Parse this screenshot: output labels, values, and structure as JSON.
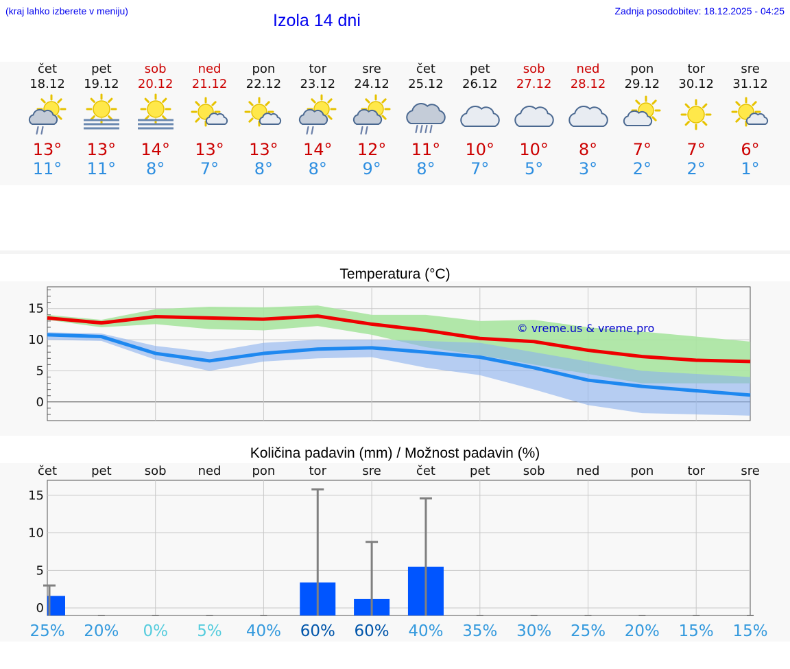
{
  "header": {
    "left_note": "(kraj lahko izberete v meniju)",
    "title": "Izola 14 dni",
    "updated": "Zadnja posodobitev: 18.12.2025 - 04:25"
  },
  "days": [
    {
      "name": "čet",
      "date": "18.12",
      "weekend": false,
      "icon": "sun-cloud-rain-icon",
      "tmax": "13°",
      "tmin": "11°"
    },
    {
      "name": "pet",
      "date": "19.12",
      "weekend": false,
      "icon": "sun-fog-icon",
      "tmax": "13°",
      "tmin": "11°"
    },
    {
      "name": "sob",
      "date": "20.12",
      "weekend": true,
      "icon": "sun-fog-icon",
      "tmax": "14°",
      "tmin": "8°"
    },
    {
      "name": "ned",
      "date": "21.12",
      "weekend": true,
      "icon": "sun-small-cloud-icon",
      "tmax": "13°",
      "tmin": "7°"
    },
    {
      "name": "pon",
      "date": "22.12",
      "weekend": false,
      "icon": "sun-small-cloud-icon",
      "tmax": "13°",
      "tmin": "8°"
    },
    {
      "name": "tor",
      "date": "23.12",
      "weekend": false,
      "icon": "sun-cloud-rain-icon",
      "tmax": "14°",
      "tmin": "8°"
    },
    {
      "name": "sre",
      "date": "24.12",
      "weekend": false,
      "icon": "sun-cloud-rain-icon",
      "tmax": "12°",
      "tmin": "9°"
    },
    {
      "name": "čet",
      "date": "25.12",
      "weekend": false,
      "icon": "cloud-heavy-rain-icon",
      "tmax": "11°",
      "tmin": "8°"
    },
    {
      "name": "pet",
      "date": "26.12",
      "weekend": false,
      "icon": "cloud-icon",
      "tmax": "10°",
      "tmin": "7°"
    },
    {
      "name": "sob",
      "date": "27.12",
      "weekend": true,
      "icon": "cloud-icon",
      "tmax": "10°",
      "tmin": "5°"
    },
    {
      "name": "ned",
      "date": "28.12",
      "weekend": true,
      "icon": "cloud-icon",
      "tmax": "8°",
      "tmin": "3°"
    },
    {
      "name": "pon",
      "date": "29.12",
      "weekend": false,
      "icon": "sun-cloud-icon",
      "tmax": "7°",
      "tmin": "2°"
    },
    {
      "name": "tor",
      "date": "30.12",
      "weekend": false,
      "icon": "sun-icon",
      "tmax": "7°",
      "tmin": "2°"
    },
    {
      "name": "sre",
      "date": "31.12",
      "weekend": false,
      "icon": "sun-small-cloud-icon",
      "tmax": "6°",
      "tmin": "1°"
    }
  ],
  "colors": {
    "max_line": "#ee0000",
    "min_line": "#1e88f0",
    "max_band": "#a8e4a0",
    "min_band": "#8ab0ee",
    "overlap_band": "#7fc4a8",
    "rain_bar": "#0055ff",
    "whisker": "#808080",
    "weekend": "#cc0000"
  },
  "chart_data": [
    {
      "type": "line",
      "title": "Temperatura (°C)",
      "watermark": "© vreme.us & vreme.pro",
      "ylim": [
        -3,
        18.5
      ],
      "yticks": [
        0,
        5,
        10,
        15
      ],
      "x": [
        0,
        1,
        2,
        3,
        4,
        5,
        6,
        7,
        8,
        9,
        10,
        11,
        12,
        13
      ],
      "series": [
        {
          "name": "max",
          "values": [
            13.5,
            12.7,
            13.7,
            13.5,
            13.3,
            13.8,
            12.5,
            11.5,
            10.2,
            9.7,
            8.3,
            7.3,
            6.7,
            6.5
          ]
        },
        {
          "name": "min",
          "values": [
            10.8,
            10.5,
            7.8,
            6.6,
            7.8,
            8.5,
            8.7,
            8.0,
            7.2,
            5.5,
            3.5,
            2.5,
            1.8,
            1.1
          ]
        }
      ],
      "max_band": {
        "upper": [
          14.0,
          13.2,
          14.9,
          15.3,
          15.2,
          15.5,
          14.0,
          14.0,
          13.0,
          13.2,
          12.0,
          11.3,
          10.5,
          9.7
        ],
        "lower": [
          13.2,
          12.0,
          12.5,
          11.7,
          11.5,
          12.2,
          10.8,
          8.8,
          7.5,
          6.0,
          4.5,
          3.0,
          3.0,
          3.0
        ]
      },
      "min_band": {
        "upper": [
          11.2,
          11.0,
          9.0,
          8.0,
          9.5,
          10.0,
          10.0,
          9.8,
          9.5,
          8.0,
          6.5,
          5.0,
          4.5,
          4.0
        ],
        "lower": [
          10.0,
          9.8,
          6.8,
          5.0,
          6.5,
          7.0,
          7.2,
          5.5,
          4.3,
          2.0,
          -0.5,
          -1.8,
          -2.0,
          -2.2
        ]
      }
    },
    {
      "type": "bar",
      "title": "Količina padavin (mm) / Možnost padavin (%)",
      "categories": [
        "čet",
        "pet",
        "sob",
        "ned",
        "pon",
        "tor",
        "sre",
        "čet",
        "pet",
        "sob",
        "ned",
        "pon",
        "tor",
        "sre"
      ],
      "ylim": [
        -1,
        17
      ],
      "yticks": [
        0,
        5,
        10,
        15
      ],
      "values": [
        1.6,
        0,
        0,
        0,
        0,
        3.4,
        1.2,
        5.5,
        0,
        0,
        0,
        0,
        0,
        0
      ],
      "range_max": [
        3.0,
        0,
        0,
        0,
        0,
        15.8,
        8.8,
        14.6,
        0,
        0,
        0,
        0,
        0,
        0
      ],
      "probability": [
        "25%",
        "20%",
        "0%",
        "5%",
        "40%",
        "60%",
        "60%",
        "40%",
        "35%",
        "30%",
        "25%",
        "20%",
        "15%",
        "15%"
      ],
      "probability_colors": [
        "#3399dd",
        "#3399dd",
        "#55ccdd",
        "#55ccdd",
        "#3399dd",
        "#0055aa",
        "#0055aa",
        "#3399dd",
        "#3399dd",
        "#3399dd",
        "#3399dd",
        "#3399dd",
        "#3399dd",
        "#3399dd"
      ]
    }
  ]
}
